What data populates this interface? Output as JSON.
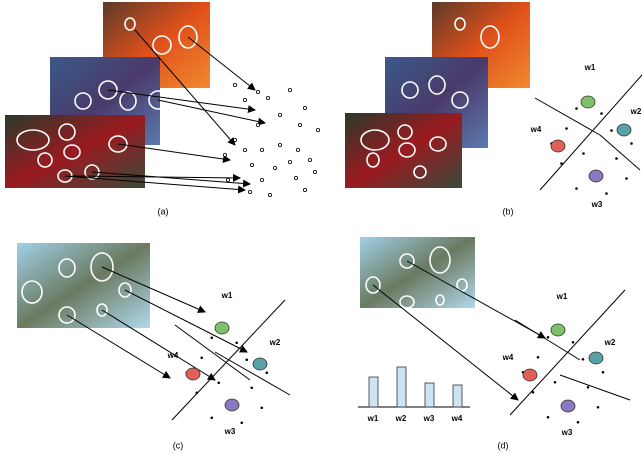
{
  "panels": [
    {
      "label": "(a)"
    },
    {
      "label": "(b)",
      "words": [
        "w1",
        "w2",
        "w3",
        "w4"
      ]
    },
    {
      "label": "(c)",
      "words": [
        "w1",
        "w2",
        "w3",
        "w4"
      ]
    },
    {
      "label": "(d)",
      "words": [
        "w1",
        "w2",
        "w3",
        "w4"
      ],
      "histogram": {
        "categories": [
          "w1",
          "w2",
          "w3",
          "w4"
        ],
        "values": [
          3,
          4,
          2.4,
          2.2
        ]
      }
    }
  ]
}
